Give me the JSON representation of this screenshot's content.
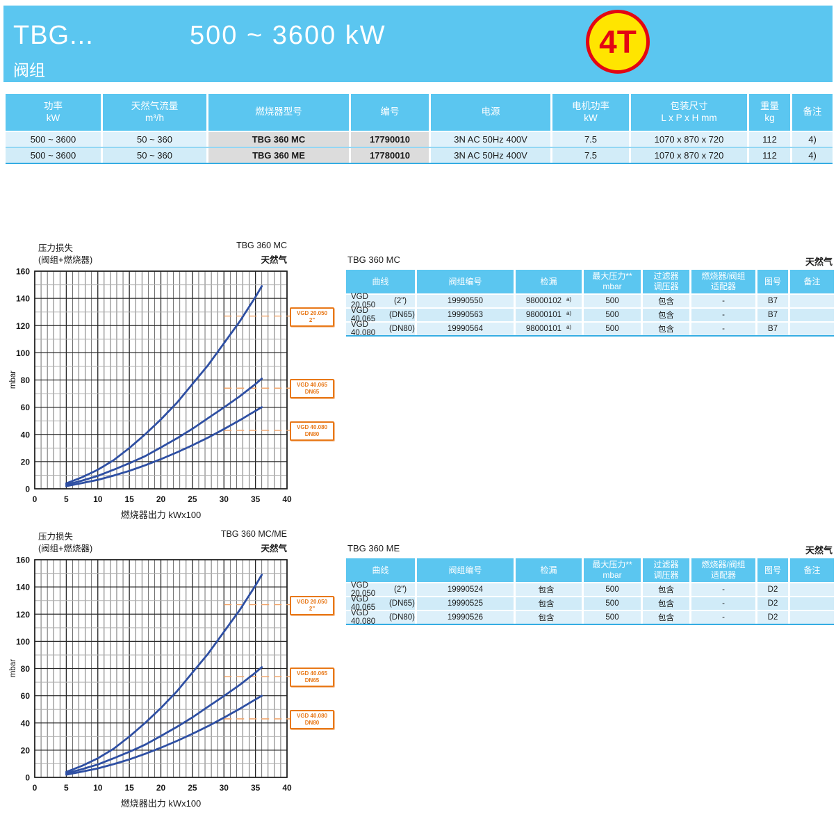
{
  "header": {
    "model": "TBG...",
    "subtitle": "阀组",
    "power_range": "500 ~ 3600 kW",
    "badge": "4T",
    "colors": {
      "band": "#5BC6F0",
      "badge_fill": "#FFE500",
      "badge_border": "#E30613"
    }
  },
  "main_table": {
    "headers": [
      {
        "l1": "功率",
        "l2": "kW"
      },
      {
        "l1": "天然气流量",
        "l2": "m³/h"
      },
      {
        "l1": "燃烧器型号",
        "l2": ""
      },
      {
        "l1": "编号",
        "l2": ""
      },
      {
        "l1": "电源",
        "l2": ""
      },
      {
        "l1": "电机功率",
        "l2": "kW"
      },
      {
        "l1": "包装尺寸",
        "l2": "L x P x H  mm"
      },
      {
        "l1": "重量",
        "l2": "kg"
      },
      {
        "l1": "备注",
        "l2": ""
      }
    ],
    "rows": [
      {
        "power": "500 ~ 3600",
        "flow": "50 ~ 360",
        "model": "TBG 360 MC",
        "code": "17790010",
        "supply": "3N AC 50Hz 400V",
        "motor": "7.5",
        "pack": "1070 x 870 x 720",
        "weight": "112",
        "note": "4)"
      },
      {
        "power": "500 ~ 3600",
        "flow": "50 ~ 360",
        "model": "TBG 360 ME",
        "code": "17780010",
        "supply": "3N AC 50Hz 400V",
        "motor": "7.5",
        "pack": "1070 x 870 x 720",
        "weight": "112",
        "note": "4)"
      }
    ]
  },
  "valve_tables": [
    {
      "title": "TBG 360 MC",
      "gas": "天然气",
      "headers": [
        {
          "l1": "曲线",
          "l2": ""
        },
        {
          "l1": "阀组编号",
          "l2": ""
        },
        {
          "l1": "检漏",
          "l2": ""
        },
        {
          "l1": "最大压力**",
          "l2": "mbar"
        },
        {
          "l1": "过滤器",
          "l2": "调压器"
        },
        {
          "l1": "燃烧器/阀组",
          "l2": "适配器"
        },
        {
          "l1": "图号",
          "l2": ""
        },
        {
          "l1": "备注",
          "l2": ""
        }
      ],
      "rows": [
        {
          "curve": "VGD 20.050",
          "size": "(2\")",
          "code": "19990550",
          "leak": "98000102",
          "leak_sup": "a)",
          "pressure": "500",
          "filter": "包含",
          "adapter": "-",
          "figure": "B7",
          "note": ""
        },
        {
          "curve": "VGD 40.065",
          "size": "(DN65)",
          "code": "19990563",
          "leak": "98000101",
          "leak_sup": "a)",
          "pressure": "500",
          "filter": "包含",
          "adapter": "-",
          "figure": "B7",
          "note": ""
        },
        {
          "curve": "VGD 40.080",
          "size": "(DN80)",
          "code": "19990564",
          "leak": "98000101",
          "leak_sup": "a)",
          "pressure": "500",
          "filter": "包含",
          "adapter": "-",
          "figure": "B7",
          "note": ""
        }
      ]
    },
    {
      "title": "TBG 360 ME",
      "gas": "天然气",
      "headers": [
        {
          "l1": "曲线",
          "l2": ""
        },
        {
          "l1": "阀组编号",
          "l2": ""
        },
        {
          "l1": "检漏",
          "l2": ""
        },
        {
          "l1": "最大压力**",
          "l2": "mbar"
        },
        {
          "l1": "过滤器",
          "l2": "调压器"
        },
        {
          "l1": "燃烧器/阀组",
          "l2": "适配器"
        },
        {
          "l1": "图号",
          "l2": ""
        },
        {
          "l1": "备注",
          "l2": ""
        }
      ],
      "rows": [
        {
          "curve": "VGD 20.050",
          "size": "(2\")",
          "code": "19990524",
          "leak": "包含",
          "leak_sup": "",
          "pressure": "500",
          "filter": "包含",
          "adapter": "-",
          "figure": "D2",
          "note": ""
        },
        {
          "curve": "VGD 40.065",
          "size": "(DN65)",
          "code": "19990525",
          "leak": "包含",
          "leak_sup": "",
          "pressure": "500",
          "filter": "包含",
          "adapter": "-",
          "figure": "D2",
          "note": ""
        },
        {
          "curve": "VGD 40.080",
          "size": "(DN80)",
          "code": "19990526",
          "leak": "包含",
          "leak_sup": "",
          "pressure": "500",
          "filter": "包含",
          "adapter": "-",
          "figure": "D2",
          "note": ""
        }
      ]
    }
  ],
  "chart_data": [
    {
      "type": "line",
      "title": "TBG 360 MC",
      "subtitle": "天然气",
      "ylabel_title": "压力损失",
      "ylabel_sub": "(阀组+燃烧器)",
      "unit": "mbar",
      "xlabel": "燃烧器出力  kWx100",
      "xlim": [
        0,
        40
      ],
      "ylim": [
        0,
        160
      ],
      "x_major": 5,
      "x_minor": 1,
      "y_major": 20,
      "y_minor": 10,
      "grid": true,
      "curve_color": "#2E4FA3",
      "callout_color": "#E87818",
      "series": [
        {
          "name": "VGD 20.050",
          "size_label": "2\"",
          "callout_y": 127,
          "x": [
            5,
            7.5,
            10,
            12.5,
            15,
            17.5,
            20,
            22.5,
            25,
            27.5,
            30,
            32.5,
            35,
            36
          ],
          "y": [
            4,
            8.5,
            14,
            21,
            30,
            40,
            51,
            63,
            77,
            91,
            107,
            123,
            141,
            149
          ]
        },
        {
          "name": "VGD 40.065",
          "size_label": "DN65",
          "callout_y": 74,
          "x": [
            5,
            7.5,
            10,
            12.5,
            15,
            17.5,
            20,
            22.5,
            25,
            27.5,
            30,
            32.5,
            35,
            36
          ],
          "y": [
            3,
            6,
            9.5,
            14,
            18.8,
            24,
            30.4,
            37,
            44.1,
            52,
            59.8,
            68,
            77,
            81
          ]
        },
        {
          "name": "VGD 40.080",
          "size_label": "DN80",
          "callout_y": 43,
          "x": [
            5,
            7.5,
            10,
            12.5,
            15,
            17.5,
            20,
            22.5,
            25,
            27.5,
            30,
            32.5,
            35,
            36
          ],
          "y": [
            2,
            4.2,
            6.6,
            9.7,
            13.2,
            17.3,
            21.8,
            26.7,
            32,
            37.7,
            43.9,
            50.4,
            57.3,
            60
          ]
        }
      ]
    },
    {
      "type": "line",
      "title": "TBG 360 MC/ME",
      "subtitle": "天然气",
      "ylabel_title": "压力损失",
      "ylabel_sub": "(阀组+燃烧器)",
      "unit": "mbar",
      "xlabel": "燃烧器出力  kWx100",
      "xlim": [
        0,
        40
      ],
      "ylim": [
        0,
        160
      ],
      "x_major": 5,
      "x_minor": 1,
      "y_major": 20,
      "y_minor": 10,
      "grid": true,
      "curve_color": "#2E4FA3",
      "callout_color": "#E87818",
      "series": [
        {
          "name": "VGD 20.050",
          "size_label": "2\"",
          "callout_y": 127,
          "x": [
            5,
            7.5,
            10,
            12.5,
            15,
            17.5,
            20,
            22.5,
            25,
            27.5,
            30,
            32.5,
            35,
            36
          ],
          "y": [
            4,
            8.5,
            14,
            21,
            30,
            40,
            51,
            63,
            77,
            91,
            107,
            123,
            141,
            149
          ]
        },
        {
          "name": "VGD 40.065",
          "size_label": "DN65",
          "callout_y": 74,
          "x": [
            5,
            7.5,
            10,
            12.5,
            15,
            17.5,
            20,
            22.5,
            25,
            27.5,
            30,
            32.5,
            35,
            36
          ],
          "y": [
            3,
            6,
            9.5,
            14,
            18.8,
            24,
            30.4,
            37,
            44.1,
            52,
            59.8,
            68,
            77,
            81
          ]
        },
        {
          "name": "VGD 40.080",
          "size_label": "DN80",
          "callout_y": 43,
          "x": [
            5,
            7.5,
            10,
            12.5,
            15,
            17.5,
            20,
            22.5,
            25,
            27.5,
            30,
            32.5,
            35,
            36
          ],
          "y": [
            2,
            4.2,
            6.6,
            9.7,
            13.2,
            17.3,
            21.8,
            26.7,
            32,
            37.7,
            43.9,
            50.4,
            57.3,
            60
          ]
        }
      ]
    }
  ]
}
